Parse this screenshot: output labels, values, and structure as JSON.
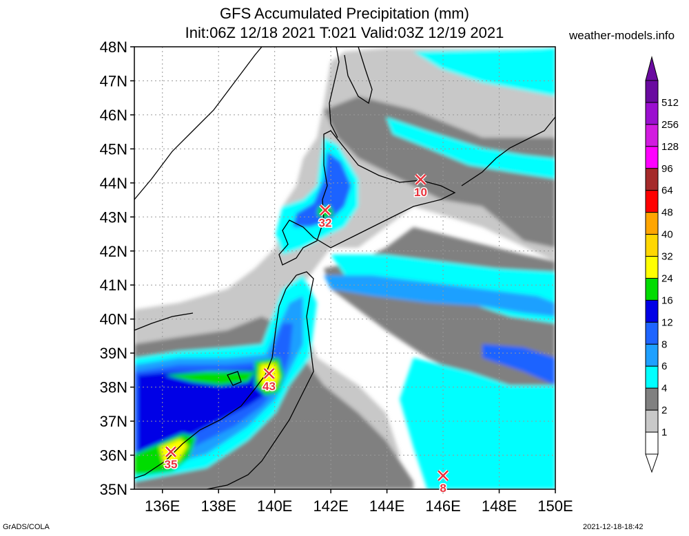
{
  "header": {
    "title_line1": "GFS Accumulated Precipitation (mm)",
    "title_line2": "Init:06Z 12/18 2021 T:021 Valid:03Z 12/19 2021",
    "credit": "weather-models.info"
  },
  "footer": {
    "left": "GrADS/COLA",
    "right": "2021-12-18-18:42"
  },
  "axes": {
    "lat_labels": [
      "48N",
      "47N",
      "46N",
      "45N",
      "44N",
      "43N",
      "42N",
      "41N",
      "40N",
      "39N",
      "38N",
      "37N",
      "36N",
      "35N"
    ],
    "lon_labels": [
      "136E",
      "138E",
      "140E",
      "142E",
      "144E",
      "146E",
      "148E",
      "150E"
    ]
  },
  "legend": {
    "labels": [
      "512",
      "256",
      "128",
      "96",
      "64",
      "48",
      "40",
      "32",
      "24",
      "16",
      "12",
      "8",
      "6",
      "4",
      "2",
      "1"
    ],
    "colors": [
      "#6a0aa0",
      "#9b0fd0",
      "#d21be0",
      "#ff00ff",
      "#a52a2a",
      "#ff0000",
      "#ffa500",
      "#ffd700",
      "#ffff00",
      "#00dc00",
      "#0000e6",
      "#1e64ff",
      "#1ea0ff",
      "#00ffff",
      "#808080",
      "#c8c8c8",
      "#ffffff"
    ]
  },
  "markers": [
    {
      "label": "10",
      "lon": 145.2,
      "lat": 44.1
    },
    {
      "label": "32",
      "lon": 141.8,
      "lat": 43.2
    },
    {
      "label": "43",
      "lon": 139.8,
      "lat": 38.4
    },
    {
      "label": "35",
      "lon": 136.3,
      "lat": 36.1
    },
    {
      "label": "8",
      "lon": 146.0,
      "lat": 35.4
    }
  ],
  "palette": {
    "gray_light": "#c8c8c8",
    "gray": "#808080",
    "cyan": "#00ffff",
    "blue_light": "#1ea0ff",
    "blue": "#1e64ff",
    "blue_dark": "#0000e6",
    "green": "#00dc00",
    "yellow": "#ffff00",
    "marker": "#e8333d"
  }
}
